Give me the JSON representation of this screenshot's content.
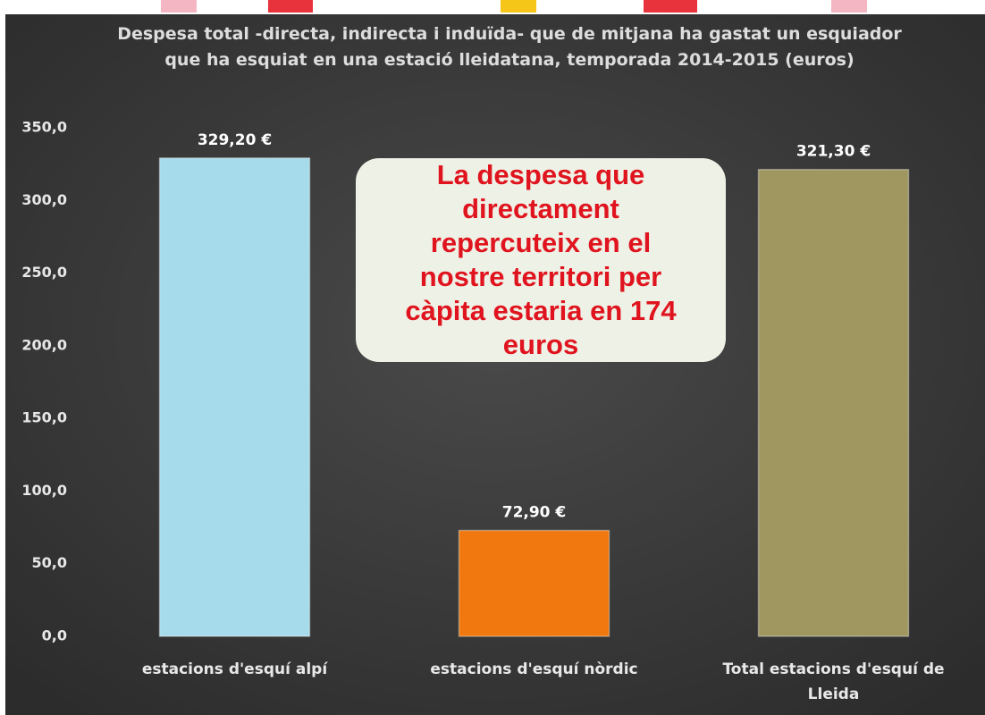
{
  "chart_data": {
    "type": "bar",
    "title": "Despesa total -directa, indirecta i induïda- que de mitjana ha gastat un esquiador que ha esquiat en una estació lleidatana, temporada 2014-2015 (euros)",
    "categories": [
      "estacions d'esquí alpí",
      "estacions d'esquí nòrdic",
      "Total estacions d'esquí de Lleida"
    ],
    "values": [
      329.2,
      72.9,
      321.3
    ],
    "value_labels": [
      "329,20 €",
      "72,90 €",
      "321,30 €"
    ],
    "colors": [
      "#a6dbeb",
      "#f0780f",
      "#a0965f"
    ],
    "ylim": [
      0,
      350
    ],
    "yticks": [
      {
        "value": 0,
        "label": "0,0"
      },
      {
        "value": 50,
        "label": "50,0"
      },
      {
        "value": 100,
        "label": "100,0"
      },
      {
        "value": 150,
        "label": "150,0"
      },
      {
        "value": 200,
        "label": "200,0"
      },
      {
        "value": 250,
        "label": "250,0"
      },
      {
        "value": 300,
        "label": "300,0"
      },
      {
        "value": 350,
        "label": "350,0"
      }
    ],
    "grid": false,
    "annotation": "La despesa que directament repercuteix en el nostre territori per càpita estaria en 174 euros"
  }
}
